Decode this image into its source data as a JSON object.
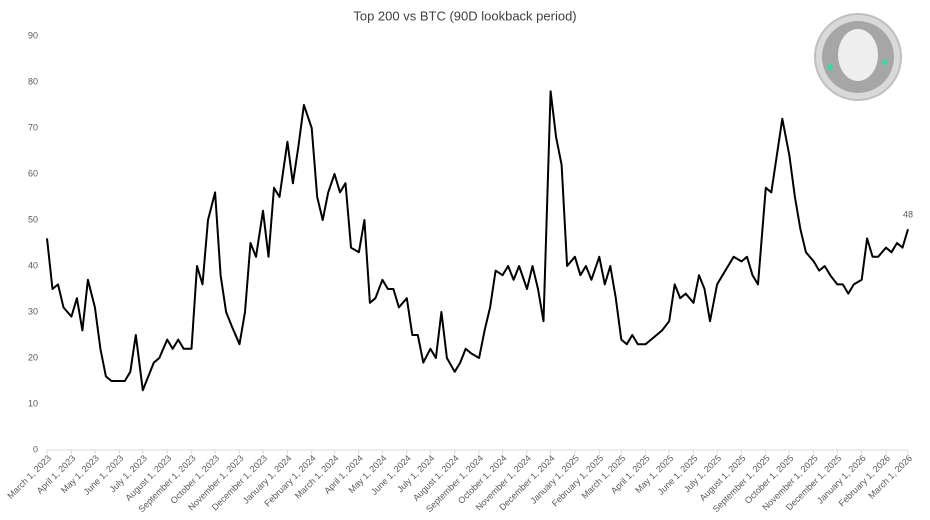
{
  "chart_data": {
    "type": "line",
    "title": "Top 200 vs BTC (90D lookback period)",
    "color": "#000000",
    "x": [
      "2023-03-01",
      "2023-03-08",
      "2023-03-15",
      "2023-03-22",
      "2023-04-01",
      "2023-04-08",
      "2023-04-15",
      "2023-04-22",
      "2023-05-01",
      "2023-05-08",
      "2023-05-15",
      "2023-05-22",
      "2023-06-01",
      "2023-06-08",
      "2023-06-15",
      "2023-06-22",
      "2023-07-01",
      "2023-07-08",
      "2023-07-15",
      "2023-07-22",
      "2023-08-01",
      "2023-08-08",
      "2023-08-15",
      "2023-08-22",
      "2023-09-01",
      "2023-09-08",
      "2023-09-15",
      "2023-09-22",
      "2023-10-01",
      "2023-10-08",
      "2023-10-15",
      "2023-10-22",
      "2023-11-01",
      "2023-11-08",
      "2023-11-15",
      "2023-11-22",
      "2023-12-01",
      "2023-12-08",
      "2023-12-15",
      "2023-12-22",
      "2024-01-01",
      "2024-01-08",
      "2024-01-15",
      "2024-01-22",
      "2024-02-01",
      "2024-02-08",
      "2024-02-15",
      "2024-02-22",
      "2024-03-01",
      "2024-03-08",
      "2024-03-15",
      "2024-03-22",
      "2024-04-01",
      "2024-04-08",
      "2024-04-15",
      "2024-04-22",
      "2024-05-01",
      "2024-05-08",
      "2024-05-15",
      "2024-05-22",
      "2024-06-01",
      "2024-06-08",
      "2024-06-15",
      "2024-06-22",
      "2024-07-01",
      "2024-07-08",
      "2024-07-15",
      "2024-07-22",
      "2024-08-01",
      "2024-08-08",
      "2024-08-15",
      "2024-08-22",
      "2024-09-01",
      "2024-09-08",
      "2024-09-15",
      "2024-09-22",
      "2024-10-01",
      "2024-10-08",
      "2024-10-15",
      "2024-10-22",
      "2024-11-01",
      "2024-11-08",
      "2024-11-15",
      "2024-11-22",
      "2024-12-01",
      "2024-12-08",
      "2024-12-15",
      "2024-12-22",
      "2025-01-01",
      "2025-01-08",
      "2025-01-15",
      "2025-01-22",
      "2025-02-01",
      "2025-02-08",
      "2025-02-15",
      "2025-02-22",
      "2025-03-01",
      "2025-03-08",
      "2025-03-15",
      "2025-03-22",
      "2025-04-01",
      "2025-04-08",
      "2025-04-15",
      "2025-04-22",
      "2025-05-01",
      "2025-05-08",
      "2025-05-15",
      "2025-05-22",
      "2025-06-01",
      "2025-06-08",
      "2025-06-15",
      "2025-06-22",
      "2025-07-01",
      "2025-07-08",
      "2025-07-15",
      "2025-07-22",
      "2025-08-01",
      "2025-08-08",
      "2025-08-15",
      "2025-08-22",
      "2025-09-01",
      "2025-09-08",
      "2025-09-15",
      "2025-09-22",
      "2025-10-01",
      "2025-10-08",
      "2025-10-15",
      "2025-10-22",
      "2025-11-01",
      "2025-11-08",
      "2025-11-15",
      "2025-11-22",
      "2025-12-01",
      "2025-12-08",
      "2025-12-15",
      "2025-12-22",
      "2026-01-01",
      "2026-01-08",
      "2026-01-15",
      "2026-01-22",
      "2026-02-01",
      "2026-02-08",
      "2026-02-15",
      "2026-02-22",
      "2026-03-01"
    ],
    "values": [
      46,
      35,
      36,
      31,
      29,
      33,
      26,
      37,
      31,
      22,
      16,
      15,
      15,
      15,
      17,
      25,
      13,
      16,
      19,
      20,
      24,
      22,
      24,
      22,
      22,
      40,
      36,
      50,
      56,
      38,
      30,
      27,
      23,
      30,
      45,
      42,
      52,
      42,
      57,
      55,
      67,
      58,
      66,
      75,
      70,
      55,
      50,
      56,
      60,
      56,
      58,
      44,
      43,
      50,
      32,
      33,
      37,
      35,
      35,
      31,
      33,
      25,
      25,
      19,
      22,
      20,
      30,
      20,
      17,
      19,
      22,
      21,
      20,
      26,
      31,
      39,
      38,
      40,
      37,
      40,
      35,
      40,
      35,
      28,
      78,
      68,
      62,
      40,
      42,
      38,
      40,
      37,
      42,
      36,
      40,
      33,
      24,
      23,
      25,
      23,
      23,
      24,
      25,
      26,
      28,
      36,
      33,
      34,
      32,
      38,
      35,
      28,
      36,
      38,
      40,
      42,
      41,
      42,
      38,
      36,
      57,
      56,
      64,
      72,
      64,
      55,
      48,
      43,
      41,
      39,
      40,
      38,
      36,
      36,
      34,
      36,
      37,
      46,
      42,
      42,
      44,
      43,
      45,
      44,
      48
    ],
    "xlim": [
      "2023-03-01",
      "2026-03-01"
    ],
    "xticks": [
      {
        "value": "2023-03-01",
        "label": "March 1, 2023"
      },
      {
        "value": "2023-04-01",
        "label": "April 1, 2023"
      },
      {
        "value": "2023-05-01",
        "label": "May 1, 2023"
      },
      {
        "value": "2023-06-01",
        "label": "June 1, 2023"
      },
      {
        "value": "2023-07-01",
        "label": "July 1, 2023"
      },
      {
        "value": "2023-08-01",
        "label": "August 1, 2023"
      },
      {
        "value": "2023-09-01",
        "label": "September 1, 2023"
      },
      {
        "value": "2023-10-01",
        "label": "October 1, 2023"
      },
      {
        "value": "2023-11-01",
        "label": "November 1, 2023"
      },
      {
        "value": "2023-12-01",
        "label": "December 1, 2023"
      },
      {
        "value": "2024-01-01",
        "label": "January 1, 2024"
      },
      {
        "value": "2024-02-01",
        "label": "February 1, 2024"
      },
      {
        "value": "2024-03-01",
        "label": "March 1, 2024"
      },
      {
        "value": "2024-04-01",
        "label": "April 1, 2024"
      },
      {
        "value": "2024-05-01",
        "label": "May 1, 2024"
      },
      {
        "value": "2024-06-01",
        "label": "June 1, 2024"
      },
      {
        "value": "2024-07-01",
        "label": "July 1, 2024"
      },
      {
        "value": "2024-08-01",
        "label": "August 1, 2024"
      },
      {
        "value": "2024-09-01",
        "label": "September 1, 2024"
      },
      {
        "value": "2024-10-01",
        "label": "October 1, 2024"
      },
      {
        "value": "2024-11-01",
        "label": "November 1, 2024"
      },
      {
        "value": "2024-12-01",
        "label": "December 1, 2024"
      },
      {
        "value": "2025-01-01",
        "label": "January 1, 2025"
      },
      {
        "value": "2025-02-01",
        "label": "February 1, 2025"
      },
      {
        "value": "2025-03-01",
        "label": "March 1, 2025"
      },
      {
        "value": "2025-04-01",
        "label": "April 1, 2025"
      },
      {
        "value": "2025-05-01",
        "label": "May 1, 2025"
      },
      {
        "value": "2025-06-01",
        "label": "June 1, 2025"
      },
      {
        "value": "2025-07-01",
        "label": "July 1, 2025"
      },
      {
        "value": "2025-08-01",
        "label": "August 1, 2025"
      },
      {
        "value": "2025-09-01",
        "label": "September 1, 2025"
      },
      {
        "value": "2025-10-01",
        "label": "October 1, 2025"
      },
      {
        "value": "2025-11-01",
        "label": "November 1, 2025"
      },
      {
        "value": "2025-12-01",
        "label": "December 1, 2025"
      },
      {
        "value": "2026-01-01",
        "label": "January 1, 2026"
      },
      {
        "value": "2026-02-01",
        "label": "February 1, 2026"
      },
      {
        "value": "2026-03-01",
        "label": "March 1, 2026"
      }
    ],
    "ylim": [
      0,
      90
    ],
    "yticks": [
      0,
      10,
      20,
      30,
      40,
      50,
      60,
      70,
      80,
      90
    ],
    "grid": false
  }
}
